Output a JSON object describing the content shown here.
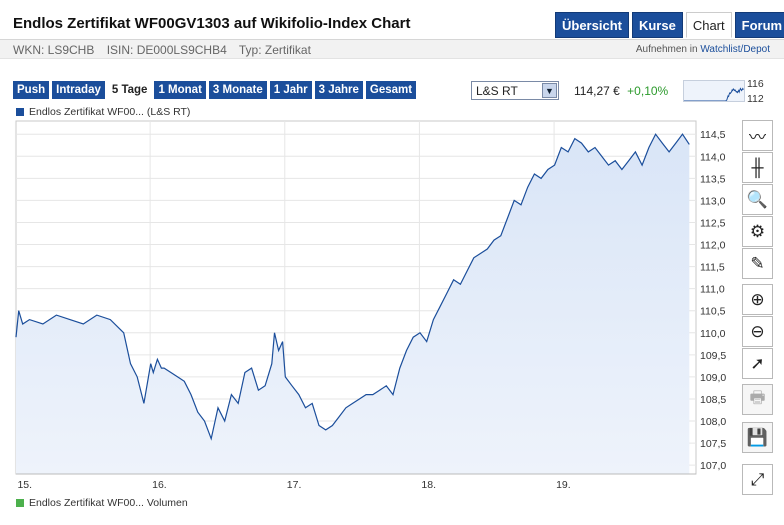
{
  "header": {
    "title": "Endlos Zertifikat WF00GV1303 auf Wikifolio-Index Chart",
    "tabs": [
      {
        "label": "Übersicht",
        "active": false
      },
      {
        "label": "Kurse",
        "active": false
      },
      {
        "label": "Chart",
        "active": true
      },
      {
        "label": "Forum",
        "active": false
      }
    ],
    "accent_color": "#1b4e9b"
  },
  "meta": {
    "wkn": "WKN: LS9CHB",
    "isin": "ISIN: DE000LS9CHB4",
    "typ": "Typ: Zertifikat",
    "watch_prefix": "Aufnehmen in",
    "watch_link": "Watchlist/Depot"
  },
  "ranges": [
    {
      "label": "Push",
      "active": false
    },
    {
      "label": "Intraday",
      "active": false
    },
    {
      "label": "5 Tage",
      "active": true
    },
    {
      "label": "1 Monat",
      "active": false
    },
    {
      "label": "3 Monate",
      "active": false
    },
    {
      "label": "1 Jahr",
      "active": false
    },
    {
      "label": "3 Jahre",
      "active": false
    },
    {
      "label": "Gesamt",
      "active": false
    }
  ],
  "exchange": {
    "selected": "L&S RT"
  },
  "quote": {
    "price": "114,27 €",
    "change": "+0,10%",
    "change_color": "#2c9a2c"
  },
  "mini_chart": {
    "high": "116",
    "low": "112"
  },
  "legend": {
    "price_series": "Endlos Zertifikat WF00... (L&S RT)",
    "price_color": "#1b4e9b",
    "volume_series": "Endlos Zertifikat WF00... Volumen",
    "volume_color": "#4cb04c"
  },
  "tools": [
    {
      "name": "line-chart-icon",
      "glyph": "〰",
      "enabled": true
    },
    {
      "name": "ohlc-chart-icon",
      "glyph": "╫",
      "enabled": true
    },
    {
      "name": "indicator-search-icon",
      "glyph": "🔍",
      "enabled": true
    },
    {
      "name": "settings-gears-icon",
      "glyph": "⚙",
      "enabled": true
    },
    {
      "name": "draw-pencil-icon",
      "glyph": "✎",
      "enabled": true
    },
    {
      "name": "zoom-in-icon",
      "glyph": "⊕",
      "enabled": true
    },
    {
      "name": "zoom-out-icon",
      "glyph": "⊖",
      "enabled": true
    },
    {
      "name": "pointer-icon",
      "glyph": "➚",
      "enabled": true
    },
    {
      "name": "print-icon",
      "glyph": "🖶",
      "enabled": false
    },
    {
      "name": "save-icon",
      "glyph": "💾",
      "enabled": false
    },
    {
      "name": "fullscreen-icon",
      "glyph": "⤢",
      "enabled": true
    }
  ],
  "chart_data": {
    "type": "area",
    "x": [
      0,
      0.02,
      0.05,
      0.1,
      0.2,
      0.3,
      0.4,
      0.5,
      0.6,
      0.7,
      0.8,
      0.85,
      0.9,
      0.95,
      1.0,
      1.02,
      1.05,
      1.08,
      1.1,
      1.15,
      1.2,
      1.25,
      1.3,
      1.35,
      1.4,
      1.45,
      1.5,
      1.55,
      1.6,
      1.65,
      1.7,
      1.75,
      1.8,
      1.85,
      1.9,
      1.92,
      1.95,
      1.98,
      2.0,
      2.05,
      2.1,
      2.15,
      2.2,
      2.25,
      2.3,
      2.35,
      2.4,
      2.45,
      2.5,
      2.55,
      2.6,
      2.65,
      2.7,
      2.75,
      2.8,
      2.85,
      2.9,
      2.95,
      3.0,
      3.05,
      3.1,
      3.15,
      3.2,
      3.25,
      3.3,
      3.35,
      3.4,
      3.45,
      3.5,
      3.55,
      3.6,
      3.65,
      3.7,
      3.75,
      3.8,
      3.85,
      3.9,
      3.95,
      4.0,
      4.05,
      4.1,
      4.15,
      4.2,
      4.25,
      4.3,
      4.35,
      4.4,
      4.45,
      4.5,
      4.55,
      4.6,
      4.65,
      4.7,
      4.75,
      4.8,
      4.85,
      4.9,
      4.95,
      5.0
    ],
    "y": [
      109.9,
      110.5,
      110.2,
      110.3,
      110.2,
      110.4,
      110.3,
      110.2,
      110.4,
      110.3,
      110.0,
      109.3,
      109.0,
      108.4,
      109.3,
      109.1,
      109.4,
      109.2,
      109.2,
      109.1,
      109.0,
      108.9,
      108.6,
      108.2,
      108.0,
      107.6,
      108.3,
      108.0,
      108.6,
      108.4,
      109.1,
      109.2,
      108.7,
      108.8,
      109.3,
      110.0,
      109.6,
      109.8,
      109.0,
      108.8,
      108.6,
      108.3,
      108.4,
      107.9,
      107.8,
      107.9,
      108.1,
      108.3,
      108.4,
      108.5,
      108.6,
      108.6,
      108.7,
      108.8,
      108.6,
      109.2,
      109.6,
      109.9,
      110.0,
      109.8,
      110.3,
      110.6,
      110.9,
      111.2,
      111.1,
      111.4,
      111.7,
      111.8,
      111.9,
      112.1,
      112.2,
      112.6,
      113.0,
      112.9,
      113.3,
      113.6,
      113.5,
      113.7,
      113.8,
      114.2,
      114.1,
      114.4,
      114.3,
      114.1,
      114.2,
      114.0,
      113.8,
      113.9,
      113.7,
      113.9,
      114.1,
      113.8,
      114.2,
      114.5,
      114.3,
      114.1,
      114.3,
      114.5,
      114.27
    ],
    "x_ticks": [
      {
        "x": 0.1,
        "label": "15."
      },
      {
        "x": 1.1,
        "label": "16."
      },
      {
        "x": 2.1,
        "label": "17."
      },
      {
        "x": 3.1,
        "label": "18."
      },
      {
        "x": 4.1,
        "label": "19."
      }
    ],
    "y_ticks": [
      107.0,
      107.5,
      108.0,
      108.5,
      109.0,
      109.5,
      110.0,
      110.5,
      111.0,
      111.5,
      112.0,
      112.5,
      113.0,
      113.5,
      114.0,
      114.5
    ],
    "y_tick_labels": [
      "107,0",
      "107,5",
      "108,0",
      "108,5",
      "109,0",
      "109,5",
      "110,0",
      "110,5",
      "111,0",
      "111,5",
      "112,0",
      "112,5",
      "113,0",
      "113,5",
      "114,0",
      "114,5"
    ],
    "xlim": [
      0,
      5.05
    ],
    "ylim": [
      106.8,
      114.8
    ],
    "grid": true,
    "line_color": "#1b4e9b",
    "fill_color": "#d9e5f7"
  }
}
